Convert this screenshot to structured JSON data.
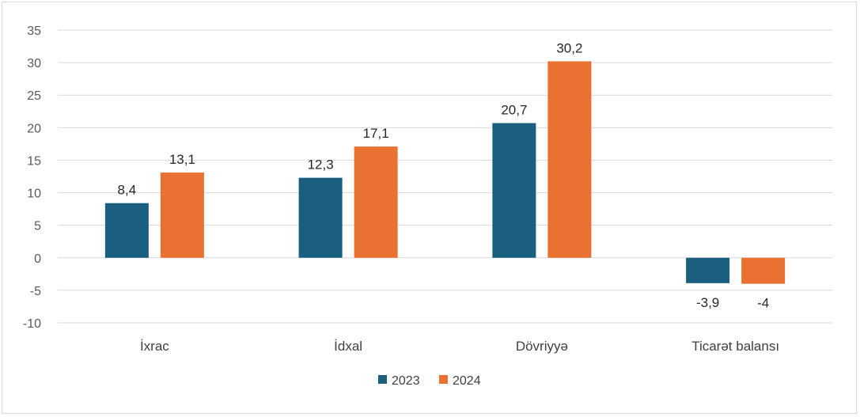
{
  "chart_data": {
    "type": "bar",
    "categories": [
      "İxrac",
      "İdxal",
      "Dövriyyə",
      "Ticarət balansı"
    ],
    "series": [
      {
        "name": "2023",
        "color": "#1a5f7f",
        "values": [
          8.4,
          12.3,
          20.7,
          -3.9
        ],
        "labels": [
          "8,4",
          "12,3",
          "20,7",
          "-3,9"
        ]
      },
      {
        "name": "2024",
        "color": "#e97132",
        "values": [
          13.1,
          17.1,
          30.2,
          -4
        ],
        "labels": [
          "13,1",
          "17,1",
          "30,2",
          "-4"
        ]
      }
    ],
    "y_ticks": [
      "35",
      "30",
      "25",
      "20",
      "15",
      "10",
      "5",
      "0",
      "-5",
      "-10"
    ],
    "ylim": [
      -10,
      35
    ],
    "grid": true,
    "legend_position": "bottom"
  }
}
